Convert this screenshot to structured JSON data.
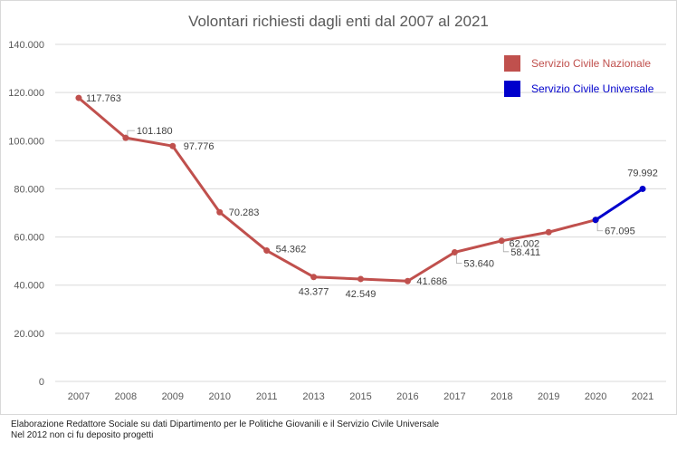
{
  "chart_data": {
    "type": "line",
    "title": "Volontari richiesti dagli enti dal 2007 al 2021",
    "categories": [
      "2007",
      "2008",
      "2009",
      "2010",
      "2011",
      "2013",
      "2015",
      "2016",
      "2017",
      "2018",
      "2019",
      "2020",
      "2021"
    ],
    "ylim": [
      0,
      140000
    ],
    "yticks": [
      0,
      20000,
      40000,
      60000,
      80000,
      100000,
      120000,
      140000
    ],
    "ytick_labels": [
      "0",
      "20.000",
      "40.000",
      "60.000",
      "80.000",
      "100.000",
      "120.000",
      "140.000"
    ],
    "grid": true,
    "legend_position": "top-right",
    "series": [
      {
        "name": "Servizio Civile Nazionale",
        "color": "#c0504d",
        "values": [
          117763,
          101180,
          97776,
          70283,
          54362,
          43377,
          42549,
          41686,
          53640,
          58411,
          62002,
          67095,
          null
        ],
        "labels": [
          "117.763",
          "101.180",
          "97.776",
          "70.283",
          "54.362",
          "43.377",
          "42.549",
          "41.686",
          "53.640",
          "58.411",
          "62.002",
          "67.095",
          ""
        ]
      },
      {
        "name": "Servizio Civile Universale",
        "color": "#0000cc",
        "values": [
          null,
          null,
          null,
          null,
          null,
          null,
          null,
          null,
          null,
          null,
          null,
          67095,
          79992
        ],
        "labels": [
          "",
          "",
          "",
          "",
          "",
          "",
          "",
          "",
          "",
          "",
          "",
          "",
          "79.992"
        ]
      }
    ]
  },
  "footer": {
    "line1": "Elaborazione Redattore Sociale su dati Dipartimento per le Politiche Giovanili e il Servizio Civile Universale",
    "line2": "Nel 2012 non ci fu deposito progetti"
  }
}
